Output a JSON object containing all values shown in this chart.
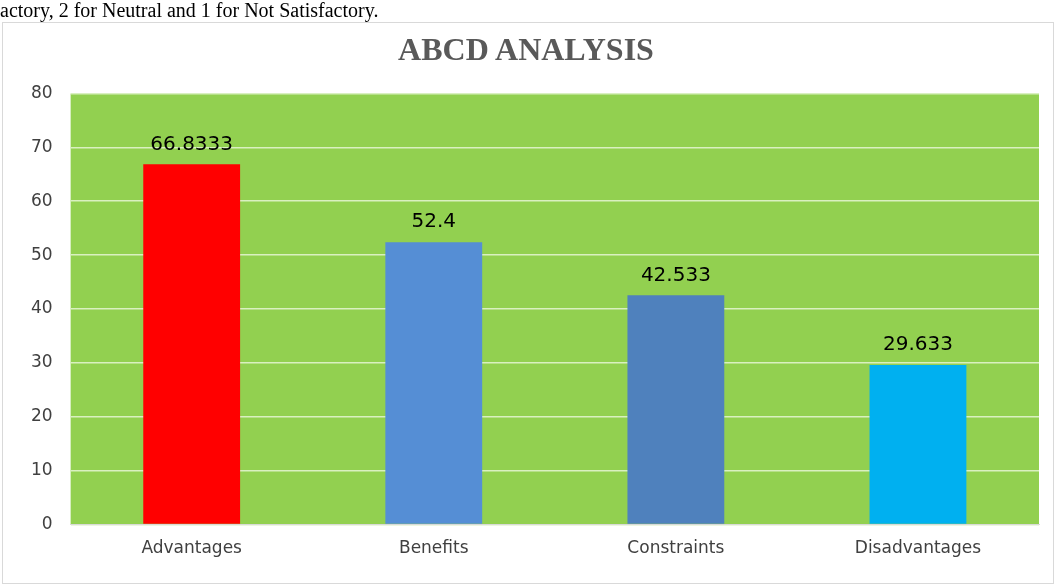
{
  "chart_data": {
    "type": "bar",
    "title": "ABCD ANALYSIS",
    "categories": [
      "Advantages",
      "Benefits",
      "Constraints",
      "Disadvantages"
    ],
    "values": [
      66.8333,
      52.4,
      42.533,
      29.633
    ],
    "colors": [
      "#ff0000",
      "#558ed5",
      "#4f81bd",
      "#00b0f0"
    ],
    "ylim": [
      0,
      80
    ],
    "yticks": [
      0,
      10,
      20,
      30,
      40,
      50,
      60,
      70,
      80
    ],
    "grid": "y",
    "data_labels": true,
    "annotations": [
      "actory, 2 for Neutral and 1 for Not Satisfactory."
    ]
  }
}
